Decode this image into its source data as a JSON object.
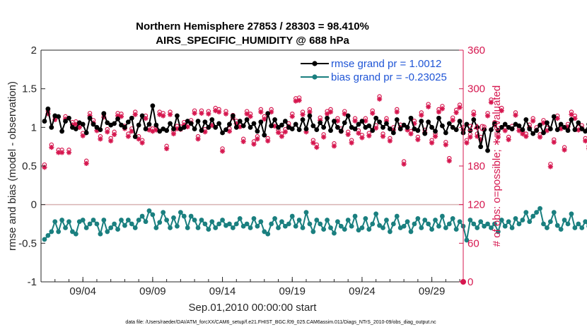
{
  "chart_data": {
    "type": "line",
    "title": "Northern Hemisphere 27853 / 28303 = 98.410%",
    "subtitle": "AIRS_SPECIFIC_HUMIDITY @ 688 hPa",
    "xlabel": "Sep.01,2010 00:00:00 start",
    "ylabel_left": "rmse and bias (model - observation)",
    "ylabel_right": "# of obs: o=possible; ∗=evaluated",
    "x_tick_labels": [
      "09/04",
      "09/09",
      "09/14",
      "09/19",
      "09/24",
      "09/29"
    ],
    "x_tick_days": [
      4,
      9,
      14,
      19,
      24,
      29
    ],
    "xlim": [
      1,
      31.25
    ],
    "ylim_left": [
      -1,
      2
    ],
    "ylim_right": [
      0,
      360
    ],
    "y_ticks_left": [
      "-1",
      "-0.5",
      "0",
      "0.5",
      "1",
      "1.5",
      "2"
    ],
    "y_ticks_right": [
      "0",
      "60",
      "120",
      "180",
      "240",
      "300",
      "360"
    ],
    "footnote": "data file: /Users/raeder/DAI/ATM_forcXX/CAM6_setup/f.e21.FHIST_BGC.f09_025.CAM6assim.011/Diags_NTrS_2010-09/obs_diag_output.nc",
    "colors": {
      "rmse": "#000000",
      "bias": "#1a7f7f",
      "obs": "#d6174f",
      "zero": "#d9b3b3",
      "legend_text": "#1f55d6"
    },
    "series": [
      {
        "name": "rmse grand pr = 1.0012",
        "axis": "left",
        "values": [
          1.08,
          1.24,
          1.0,
          1.15,
          1.14,
          0.95,
          1.08,
          1.12,
          1.0,
          0.98,
          1.06,
          1.04,
          0.93,
          1.12,
          1.04,
          1.0,
          0.97,
          1.18,
          1.06,
          1.03,
          1.05,
          1.11,
          1.03,
          1.0,
          1.07,
          1.12,
          0.88,
          1.03,
          1.15,
          0.98,
          1.04,
          1.28,
          1.03,
          0.95,
          0.98,
          0.96,
          1.05,
          0.98,
          1.15,
          0.98,
          1.0,
          1.08,
          1.05,
          0.98,
          1.08,
          0.96,
          1.07,
          1.0,
          1.1,
          1.0,
          1.05,
          0.93,
          0.97,
          1.04,
          1.15,
          1.0,
          1.08,
          1.02,
          1.1,
          1.0,
          1.05,
          0.95,
          1.07,
          0.9,
          1.18,
          1.02,
          1.1,
          1.0,
          1.03,
          1.08,
          1.0,
          0.98,
          1.04,
          0.97,
          1.1,
          0.98,
          1.15,
          1.02,
          0.97,
          1.06,
          1.0,
          1.12,
          0.96,
          1.08,
          1.0,
          0.95,
          1.06,
          1.15,
          1.0,
          0.98,
          1.04,
          1.08,
          1.0,
          1.02,
          0.96,
          1.12,
          1.07,
          1.0,
          1.05,
          0.98,
          0.93,
          1.1,
          0.98,
          1.03,
          1.0,
          1.12,
          0.98,
          0.96,
          1.08,
          0.92,
          1.07,
          1.0,
          0.95,
          1.12,
          1.02,
          0.93,
          1.05,
          1.0,
          0.97,
          1.08,
          0.93,
          1.04,
          0.96,
          1.1,
          1.0,
          0.75,
          0.97,
          0.7,
          0.97,
          1.05,
          0.96,
          1.0,
          1.04,
          1.0,
          0.98,
          1.04,
          1.02,
          0.97,
          1.1,
          0.98,
          0.92,
          0.96,
          1.03,
          0.93,
          1.06,
          0.98,
          1.14,
          0.97,
          1.04,
          1.0,
          0.96,
          1.1,
          0.97,
          1.06,
          0.98,
          0.95,
          1.04,
          0.98,
          0.97,
          1.02,
          0.96,
          1.04,
          0.98,
          1.02,
          0.98,
          0.96,
          1.03,
          0.97,
          1.0,
          0.98,
          1.03,
          1.16,
          0.96,
          0.95
        ]
      },
      {
        "name": "bias grand pr = -0.23025",
        "axis": "left",
        "values": [
          -0.45,
          -0.4,
          -0.35,
          -0.22,
          -0.35,
          -0.2,
          -0.3,
          -0.22,
          -0.35,
          -0.38,
          -0.22,
          -0.2,
          -0.3,
          -0.25,
          -0.2,
          -0.25,
          -0.38,
          -0.2,
          -0.35,
          -0.3,
          -0.25,
          -0.32,
          -0.2,
          -0.27,
          -0.2,
          -0.25,
          -0.3,
          -0.2,
          -0.15,
          -0.22,
          -0.08,
          -0.13,
          -0.3,
          -0.23,
          -0.1,
          -0.2,
          -0.3,
          -0.17,
          -0.28,
          -0.1,
          -0.15,
          -0.3,
          -0.15,
          -0.2,
          -0.3,
          -0.2,
          -0.25,
          -0.32,
          -0.22,
          -0.3,
          -0.25,
          -0.2,
          -0.27,
          -0.25,
          -0.3,
          -0.25,
          -0.18,
          -0.28,
          -0.25,
          -0.3,
          -0.18,
          -0.28,
          -0.22,
          -0.35,
          -0.38,
          -0.25,
          -0.18,
          -0.3,
          -0.22,
          -0.28,
          -0.25,
          -0.15,
          -0.28,
          -0.2,
          -0.3,
          -0.1,
          -0.25,
          -0.35,
          -0.2,
          -0.25,
          -0.32,
          -0.2,
          -0.3,
          -0.37,
          -0.22,
          -0.28,
          -0.32,
          -0.2,
          -0.28,
          -0.15,
          -0.33,
          -0.3,
          -0.18,
          -0.32,
          -0.25,
          -0.12,
          -0.27,
          -0.3,
          -0.2,
          -0.35,
          -0.25,
          -0.15,
          -0.3,
          -0.28,
          -0.22,
          -0.35,
          -0.25,
          -0.18,
          -0.3,
          -0.2,
          -0.25,
          -0.32,
          -0.2,
          -0.28,
          -0.15,
          -0.3,
          -0.25,
          -0.18,
          -0.32,
          -0.22,
          -0.28,
          -0.46,
          -0.2,
          -0.25,
          -0.3,
          -0.22,
          -0.28,
          -0.25,
          -0.3,
          -0.25,
          -0.35,
          -0.2,
          -0.28,
          -0.22,
          -0.3,
          -0.18,
          -0.25,
          -0.2,
          -0.1,
          -0.22,
          -0.15,
          -0.1,
          -0.05,
          -0.25,
          -0.3,
          -0.22,
          -0.1,
          -0.27,
          -0.32,
          -0.2,
          -0.25,
          -0.12,
          -0.3,
          -0.25,
          -0.3,
          -0.22,
          -0.28,
          -0.32,
          -0.18,
          -0.3,
          -0.26,
          -0.3,
          -0.22,
          -0.3,
          -0.25,
          -0.35,
          -0.28,
          -0.25,
          -0.25,
          -0.35,
          -0.22
        ]
      },
      {
        "name": "# of obs possible (o)",
        "axis": "right",
        "values": [
          182,
          265,
          213,
          256,
          205,
          205,
          257,
          205,
          248,
          249,
          244,
          231,
          188,
          262,
          251,
          239,
          226,
          260,
          237,
          223,
          233,
          262,
          261,
          242,
          230,
          238,
          264,
          226,
          220,
          258,
          240,
          238,
          240,
          264,
          262,
          211,
          264,
          234,
          242,
          241,
          248,
          245,
          251,
          266,
          226,
          266,
          237,
          265,
          247,
          270,
          268,
          207,
          265,
          238,
          259,
          250,
          245,
          222,
          265,
          261,
          218,
          226,
          268,
          257,
          223,
          268,
          246,
          236,
          230,
          237,
          246,
          261,
          285,
          286,
          264,
          237,
          268,
          220,
          213,
          255,
          229,
          265,
          268,
          215,
          254,
          238,
          265,
          233,
          220,
          254,
          235,
          228,
          254,
          231,
          266,
          243,
          288,
          230,
          254,
          223,
          240,
          268,
          244,
          187,
          240,
          234,
          250,
          225,
          263,
          236,
          276,
          220,
          230,
          268,
          273,
          217,
          192,
          255,
          267,
          275,
          240,
          220,
          229,
          264,
          230,
          225,
          241,
          262,
          283,
          248,
          229,
          270,
          239,
          225,
          242,
          263,
          239,
          234,
          230,
          244,
          254,
          240,
          229,
          251,
          239,
          183,
          221,
          258,
          242,
          209,
          245,
          264,
          258,
          240,
          243,
          223,
          211,
          233,
          230,
          236,
          222,
          233,
          230,
          243,
          237,
          160,
          147,
          236,
          226,
          237,
          233,
          233,
          242,
          228,
          196
        ]
      },
      {
        "name": "# of obs evaluated (∗)",
        "axis": "right",
        "values": [
          178,
          261,
          209,
          252,
          201,
          201,
          253,
          201,
          244,
          245,
          240,
          227,
          184,
          258,
          247,
          235,
          222,
          256,
          233,
          219,
          229,
          258,
          257,
          238,
          226,
          234,
          260,
          222,
          216,
          254,
          236,
          234,
          236,
          260,
          258,
          207,
          260,
          230,
          238,
          237,
          244,
          241,
          247,
          262,
          222,
          262,
          233,
          261,
          243,
          266,
          264,
          203,
          261,
          234,
          255,
          246,
          241,
          218,
          261,
          257,
          214,
          222,
          264,
          253,
          219,
          264,
          242,
          232,
          226,
          233,
          242,
          257,
          281,
          282,
          260,
          233,
          264,
          216,
          209,
          251,
          225,
          261,
          264,
          211,
          250,
          234,
          261,
          229,
          216,
          250,
          231,
          224,
          250,
          227,
          262,
          239,
          284,
          226,
          250,
          219,
          236,
          264,
          240,
          183,
          236,
          230,
          246,
          221,
          259,
          232,
          272,
          216,
          226,
          264,
          269,
          213,
          188,
          251,
          263,
          271,
          236,
          216,
          225,
          260,
          226,
          221,
          237,
          258,
          279,
          244,
          225,
          266,
          235,
          221,
          238,
          259,
          235,
          230,
          226,
          240,
          250,
          236,
          225,
          247,
          235,
          179,
          217,
          254,
          238,
          205,
          241,
          260,
          254,
          236,
          239,
          219,
          207,
          229,
          226,
          232,
          218,
          229,
          226,
          239,
          233,
          131,
          137,
          232,
          222,
          233,
          229,
          229,
          238,
          224,
          190
        ]
      }
    ]
  }
}
